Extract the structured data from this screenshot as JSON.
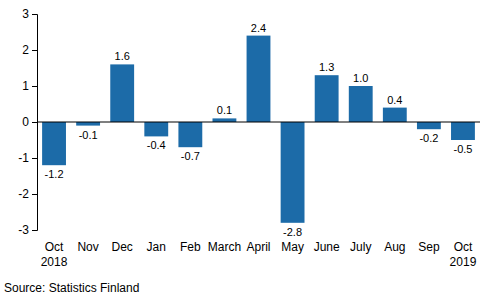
{
  "chart_data": {
    "type": "bar",
    "categories": [
      "Oct\n2018",
      "Nov",
      "Dec",
      "Jan",
      "Feb",
      "March",
      "April",
      "May",
      "June",
      "July",
      "Aug",
      "Sep",
      "Oct\n2019"
    ],
    "values": [
      -1.2,
      -0.1,
      1.6,
      -0.4,
      -0.7,
      0.1,
      2.4,
      -2.8,
      1.3,
      1.0,
      0.4,
      -0.2,
      -0.5
    ],
    "value_labels": [
      "-1.2",
      "-0.1",
      "1.6",
      "-0.4",
      "-0.7",
      "0.1",
      "2.4",
      "-2.8",
      "1.3",
      "1.0",
      "0.4",
      "-0.2",
      "-0.5"
    ],
    "color": "#1c6ba8",
    "ylim": [
      -3,
      3
    ],
    "yticks": [
      -3,
      -2,
      -1,
      0,
      1,
      2,
      3
    ],
    "data_labels": true,
    "source": "Source: Statistics Finland"
  }
}
